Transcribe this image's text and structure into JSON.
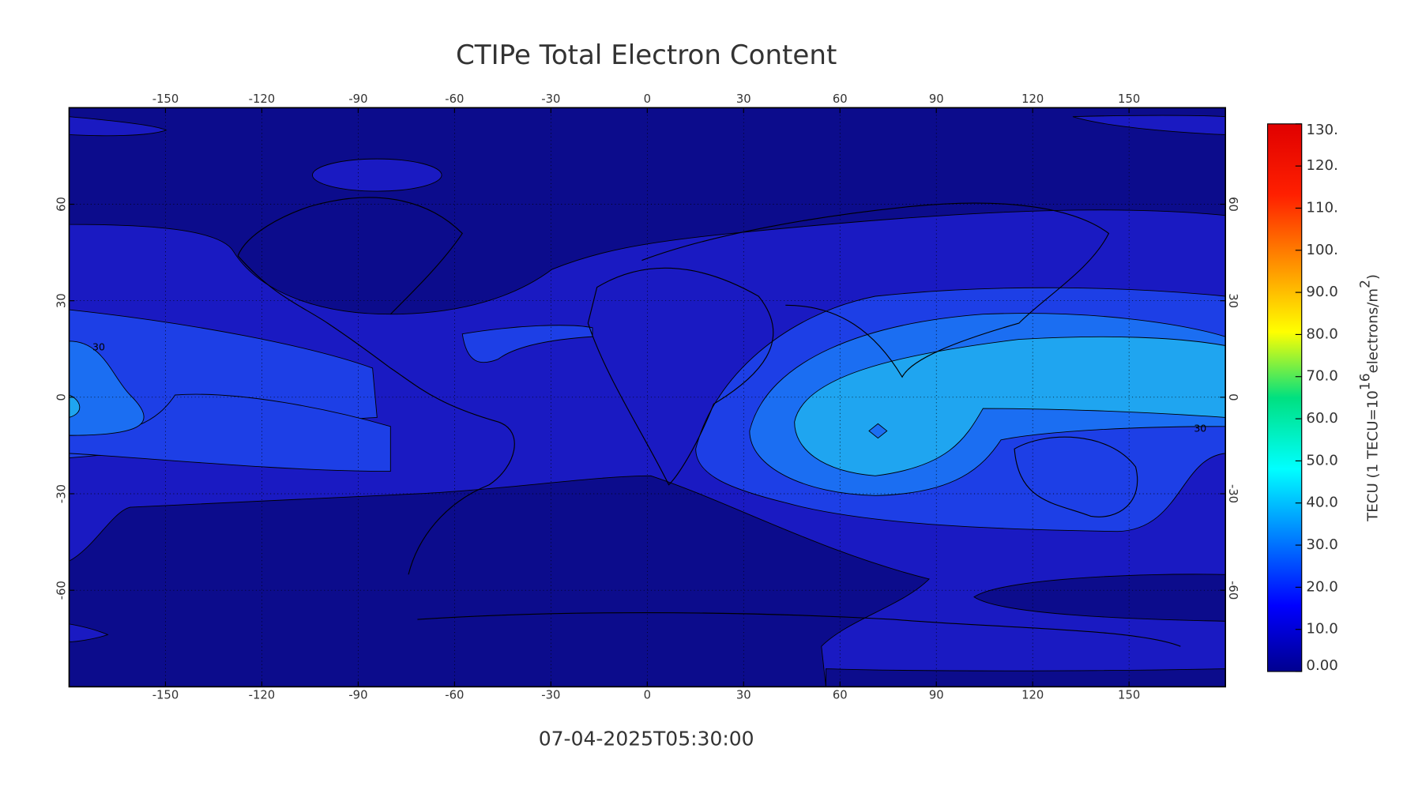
{
  "map": {
    "title": "CTIPe Total Electron Content",
    "timestamp": "07-04-2025T05:30:00",
    "xlim": [
      -180,
      180
    ],
    "ylim": [
      -90,
      90
    ],
    "xticks": [
      -150,
      -120,
      -90,
      -60,
      -30,
      0,
      30,
      60,
      90,
      120,
      150
    ],
    "yticks": [
      -60,
      -30,
      0,
      30,
      60
    ],
    "contour_labels": [
      "30",
      "30"
    ],
    "colorbar": {
      "title": [
        "TECU (1 TECU=10",
        "16",
        "electrons/m",
        "2",
        ")"
      ],
      "lim": [
        0,
        130
      ],
      "ticks": [
        {
          "value": 0,
          "label": "0.00"
        },
        {
          "value": 10,
          "label": "10.0"
        },
        {
          "value": 20,
          "label": "20.0"
        },
        {
          "value": 30,
          "label": "30.0"
        },
        {
          "value": 40,
          "label": "40.0"
        },
        {
          "value": 50,
          "label": "50.0"
        },
        {
          "value": 60,
          "label": "60.0"
        },
        {
          "value": 70,
          "label": "70.0"
        },
        {
          "value": 80,
          "label": "80.0"
        },
        {
          "value": 90,
          "label": "90.0"
        },
        {
          "value": 100,
          "label": "100."
        },
        {
          "value": 110,
          "label": "110."
        },
        {
          "value": 120,
          "label": "120."
        },
        {
          "value": 130,
          "label": "130."
        }
      ]
    }
  }
}
